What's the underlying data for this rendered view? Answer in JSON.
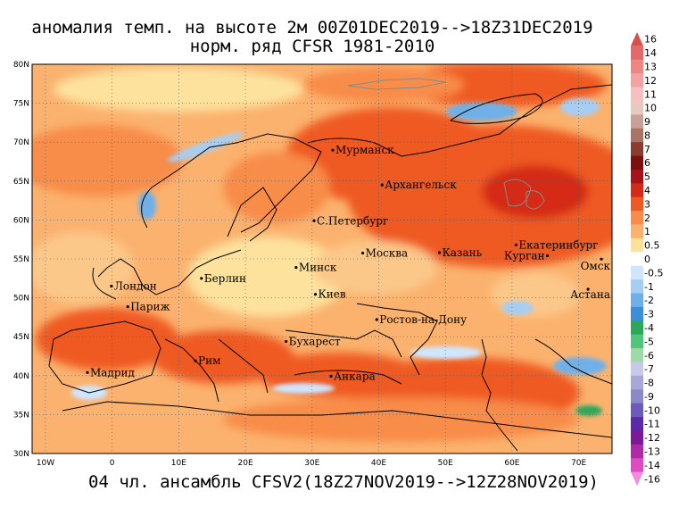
{
  "title": {
    "line1": "аномалия темп. на высоте 2м 00Z01DEC2019-->18Z31DEC2019",
    "line2": "норм. ряд CFSR 1981-2010"
  },
  "footer": "04 чл. ансамбль CFSV2(18Z27NOV2019-->12Z28NOV2019)",
  "map": {
    "lon_range": [
      -12,
      75
    ],
    "lat_range": [
      30,
      80
    ],
    "lat_ticks": [
      "80N",
      "75N",
      "70N",
      "65N",
      "60N",
      "55N",
      "50N",
      "45N",
      "40N",
      "35N",
      "30N"
    ],
    "lon_ticks": [
      "10W",
      "0",
      "10E",
      "20E",
      "30E",
      "40E",
      "50E",
      "60E",
      "70E"
    ]
  },
  "cities": [
    {
      "name": "Мурманск",
      "lon": 33.1,
      "lat": 68.97
    },
    {
      "name": "Архангельск",
      "lon": 40.5,
      "lat": 64.5
    },
    {
      "name": "С.Петербург",
      "lon": 30.3,
      "lat": 59.9
    },
    {
      "name": "Москва",
      "lon": 37.6,
      "lat": 55.75
    },
    {
      "name": "Казань",
      "lon": 49.1,
      "lat": 55.8
    },
    {
      "name": "Екатеринбург",
      "lon": 60.6,
      "lat": 56.8
    },
    {
      "name": "Курган",
      "lon": 65.3,
      "lat": 55.4
    },
    {
      "name": "Омск",
      "lon": 73.4,
      "lat": 54.98
    },
    {
      "name": "Астана",
      "lon": 71.4,
      "lat": 51.1
    },
    {
      "name": "Минск",
      "lon": 27.6,
      "lat": 53.9
    },
    {
      "name": "Киев",
      "lon": 30.5,
      "lat": 50.45
    },
    {
      "name": "Берлин",
      "lon": 13.4,
      "lat": 52.5
    },
    {
      "name": "Лондон",
      "lon": -0.1,
      "lat": 51.5
    },
    {
      "name": "Париж",
      "lon": 2.35,
      "lat": 48.86
    },
    {
      "name": "Ростов-на-Дону",
      "lon": 39.7,
      "lat": 47.2
    },
    {
      "name": "Бухарест",
      "lon": 26.1,
      "lat": 44.4
    },
    {
      "name": "Мадрид",
      "lon": -3.7,
      "lat": 40.4
    },
    {
      "name": "Рим",
      "lon": 12.5,
      "lat": 41.9
    },
    {
      "name": "Анкара",
      "lon": 32.85,
      "lat": 39.93
    }
  ],
  "colorbar": {
    "levels": [
      "16",
      "14",
      "13",
      "12",
      "11",
      "10",
      "9",
      "8",
      "7",
      "6",
      "5",
      "4",
      "3",
      "2",
      "1",
      "0.5",
      "0",
      "-0.5",
      "-1",
      "-2",
      "-3",
      "-4",
      "-5",
      "-6",
      "-7",
      "-8",
      "-9",
      "-10",
      "-11",
      "-12",
      "-13",
      "-14",
      "-16"
    ],
    "colors": [
      "#d6504f",
      "#e36a6a",
      "#ee8686",
      "#f2a2a2",
      "#f6c0c0",
      "#e8c9c2",
      "#c9a098",
      "#a97468",
      "#8a3c30",
      "#7a1010",
      "#a51218",
      "#d42a18",
      "#ef5a22",
      "#f88c4a",
      "#fbb26e",
      "#fde29e",
      "#ffffff",
      "#cfe6ff",
      "#a6cef2",
      "#6fb0e8",
      "#3a8fd8",
      "#2ca85a",
      "#4fc67a",
      "#9ed9a8",
      "#c8c8e8",
      "#a8a8d8",
      "#8a8ac8",
      "#6e5ab8",
      "#5a2aa8",
      "#7a1a98",
      "#b02aa8",
      "#e04ac0",
      "#f28ae0"
    ]
  }
}
